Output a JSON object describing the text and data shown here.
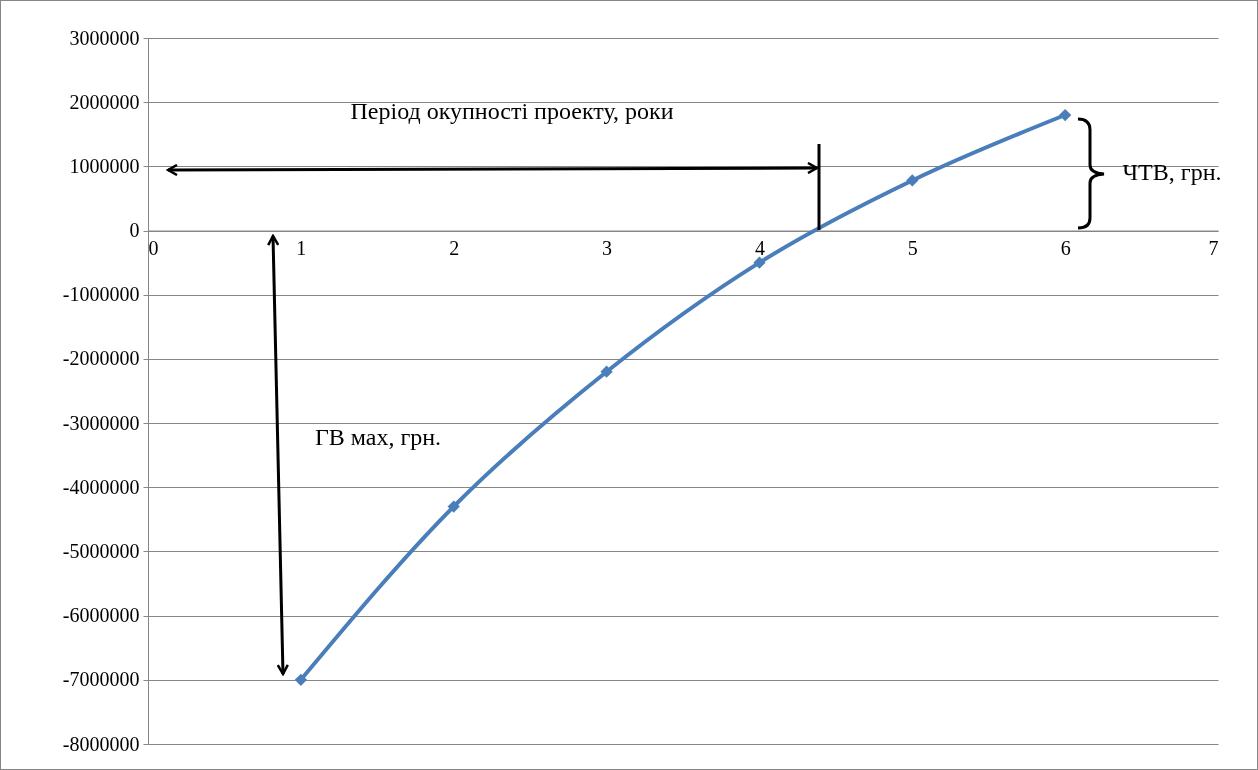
{
  "chart_data": {
    "type": "line",
    "x": [
      1,
      2,
      3,
      4,
      5,
      6
    ],
    "series": [
      {
        "color": "#4a7ebb",
        "values": [
          -7000000,
          -4300000,
          -2200000,
          -500000,
          780000,
          1800000
        ]
      }
    ],
    "xlim": [
      0,
      7
    ],
    "xticks": [
      0,
      1,
      2,
      3,
      4,
      5,
      6,
      7
    ],
    "ylim": [
      -8000000,
      3000000
    ],
    "yticks": [
      -8000000,
      -7000000,
      -6000000,
      -5000000,
      -4000000,
      -3000000,
      -2000000,
      -1000000,
      0,
      1000000,
      2000000,
      3000000
    ],
    "grid": "y",
    "marker": "diamond",
    "line_style": "solid",
    "annotations": [
      "Період окупності проекту, роки",
      "ГВ мах, грн.",
      "ЧТВ, грн."
    ]
  }
}
